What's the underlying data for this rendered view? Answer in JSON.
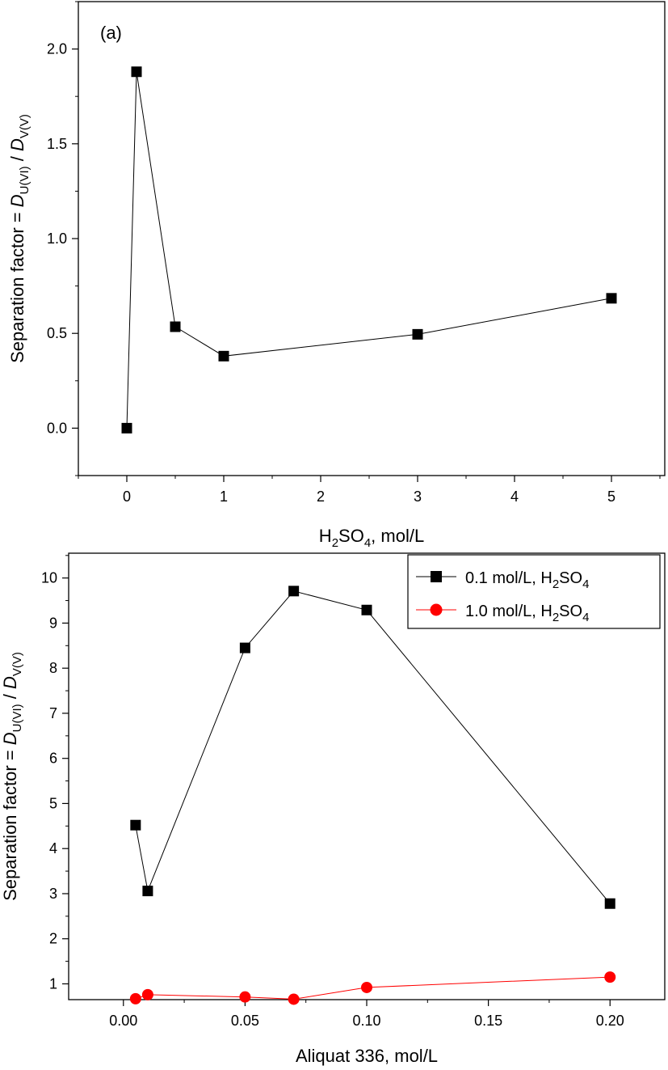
{
  "chart_data": [
    {
      "type": "line",
      "panel_label": "(a)",
      "xlabel": {
        "base": "H",
        "sub1": "2",
        "mid": "SO",
        "sub2": "4",
        "rest": ", mol/L"
      },
      "ylabel": {
        "prefix": "Separation factor = ",
        "d1": "D",
        "d1_sub": "U(VI)",
        "sep": " / ",
        "d2": "D",
        "d2_sub": "V(V)"
      },
      "xlim": [
        -0.5,
        5.55
      ],
      "ylim": [
        -0.25,
        2.25
      ],
      "xticks": [
        0,
        1,
        2,
        3,
        4,
        5
      ],
      "xtick_labels": [
        "0",
        "1",
        "2",
        "3",
        "4",
        "5"
      ],
      "yticks": [
        0.0,
        0.5,
        1.0,
        1.5,
        2.0
      ],
      "ytick_labels": [
        "0.0",
        "0.5",
        "1.0",
        "1.5",
        "2.0"
      ],
      "series": [
        {
          "color": "#000000",
          "marker": "square",
          "x": [
            0,
            0.1,
            0.5,
            1,
            3,
            5
          ],
          "y": [
            0.0,
            1.88,
            0.535,
            0.38,
            0.495,
            0.685
          ]
        }
      ]
    },
    {
      "type": "line",
      "xlabel": "Aliquat 336, mol/L",
      "ylabel": {
        "prefix": "Separation factor = ",
        "d1": "D",
        "d1_sub": "U(VI)",
        "sep": " / ",
        "d2": "D",
        "d2_sub": "V(V)"
      },
      "xlim": [
        -0.0225,
        0.2225
      ],
      "ylim": [
        0.65,
        10.55
      ],
      "xticks": [
        0.0,
        0.05,
        0.1,
        0.15,
        0.2
      ],
      "xtick_labels": [
        "0.00",
        "0.05",
        "0.10",
        "0.15",
        "0.20"
      ],
      "yticks": [
        1,
        2,
        3,
        4,
        5,
        6,
        7,
        8,
        9,
        10
      ],
      "ytick_labels": [
        "1",
        "2",
        "3",
        "4",
        "5",
        "6",
        "7",
        "8",
        "9",
        "10"
      ],
      "legend_position": "top-right",
      "series": [
        {
          "name": {
            "text": "0.1 mol/L, H",
            "sub1": "2",
            "mid": "SO",
            "sub2": "4"
          },
          "color": "#000000",
          "marker": "square",
          "x": [
            0.005,
            0.01,
            0.05,
            0.07,
            0.1,
            0.2
          ],
          "y": [
            4.52,
            3.06,
            8.45,
            9.71,
            9.29,
            2.78
          ]
        },
        {
          "name": {
            "text": "1.0 mol/L, H",
            "sub1": "2",
            "mid": "SO",
            "sub2": "4"
          },
          "color": "#ff0000",
          "marker": "circle",
          "x": [
            0.005,
            0.01,
            0.05,
            0.07,
            0.1,
            0.2
          ],
          "y": [
            0.67,
            0.76,
            0.71,
            0.66,
            0.92,
            1.15
          ]
        }
      ]
    }
  ]
}
